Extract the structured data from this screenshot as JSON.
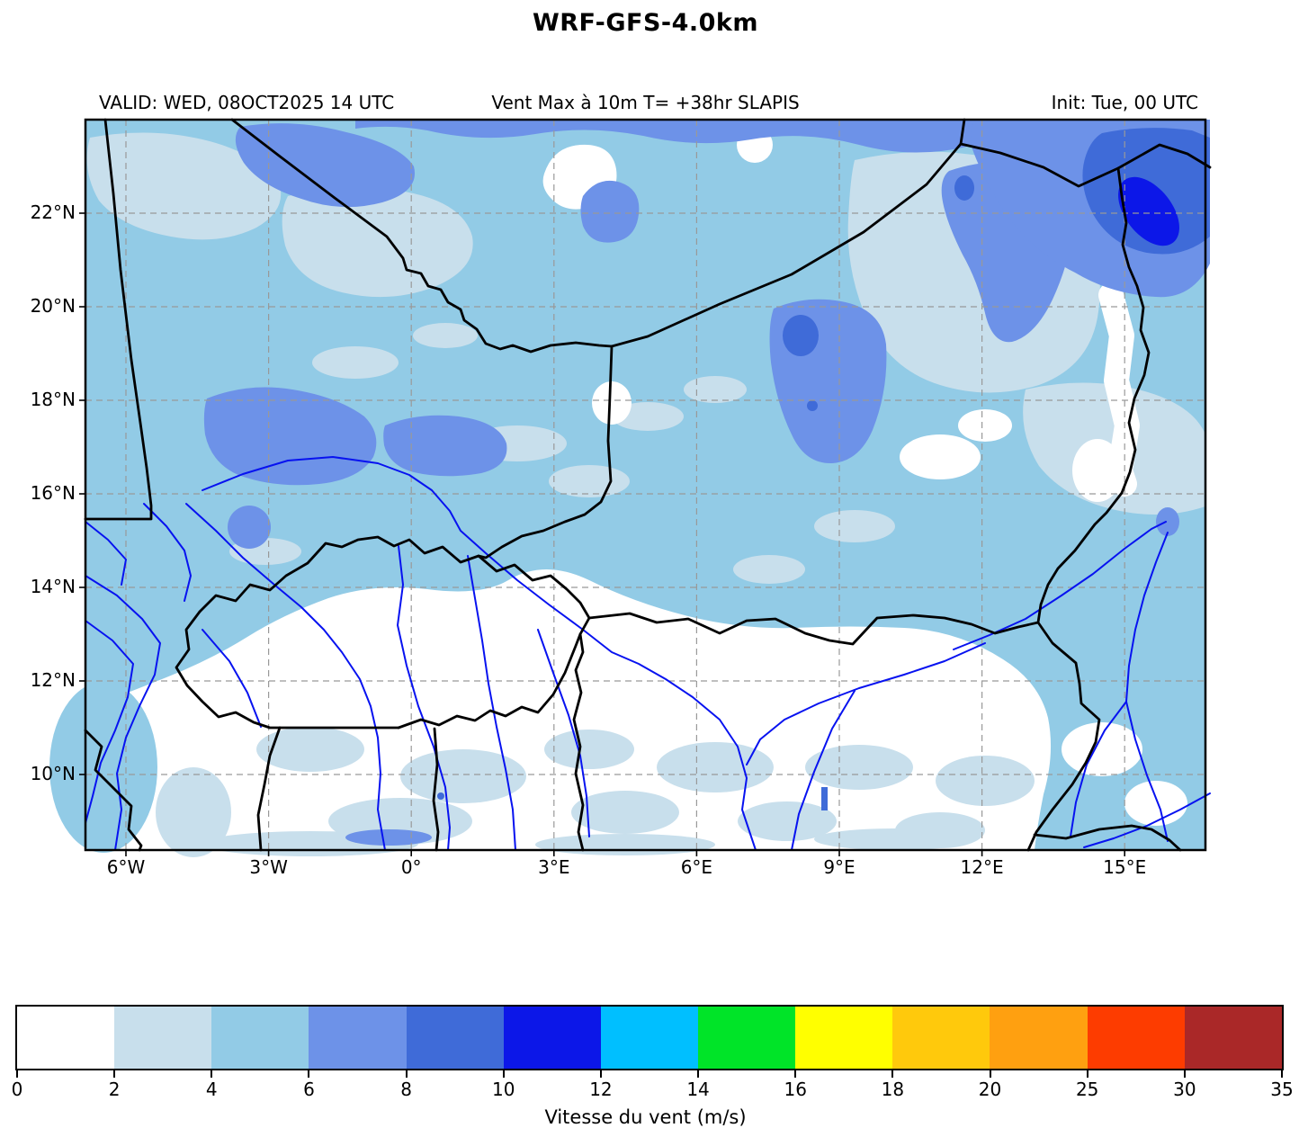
{
  "title": "WRF-GFS-4.0km",
  "header": {
    "valid": "VALID: WED, 08OCT2025 14 UTC",
    "variable": "Vent Max à 10m T= +38hr SLAPIS",
    "init": "Init: Tue, 00 UTC"
  },
  "chart_data": {
    "type": "heatmap",
    "title": "WRF-GFS-4.0km",
    "subtitle_left": "VALID: WED, 08OCT2025 14 UTC",
    "subtitle_center": "Vent Max à 10m T= +38hr SLAPIS",
    "subtitle_right": "Init: Tue, 00 UTC",
    "projection": "lat-lon map of West Africa / Sahel",
    "lon_range_deg": [
      -6.85,
      16.7
    ],
    "lat_range_deg": [
      8.4,
      24.0
    ],
    "grid": "dashed gray graticule every 3 deg lon / 2 deg lat",
    "axes": {
      "lon_ticks": [
        "6°W",
        "3°W",
        "0°",
        "3°E",
        "6°E",
        "9°E",
        "12°E",
        "15°E"
      ],
      "lon_tick_values": [
        -6,
        -3,
        0,
        3,
        6,
        9,
        12,
        15
      ],
      "lat_ticks": [
        "22°N",
        "20°N",
        "18°N",
        "16°N",
        "14°N",
        "12°N",
        "10°N"
      ],
      "lat_tick_values": [
        22,
        20,
        18,
        16,
        14,
        12,
        10
      ]
    },
    "colorbar": {
      "label": "Vitesse du vent (m/s)",
      "orientation": "horizontal",
      "boundaries": [
        0,
        2,
        4,
        6,
        8,
        10,
        12,
        14,
        16,
        18,
        20,
        25,
        30,
        35
      ],
      "tick_labels": [
        "0",
        "2",
        "4",
        "6",
        "8",
        "10",
        "12",
        "14",
        "16",
        "18",
        "20",
        "25",
        "30",
        "35"
      ],
      "colors": [
        "#ffffff",
        "#c8dfec",
        "#92cbe6",
        "#6d92e8",
        "#3f6bd8",
        "#0c17e8",
        "#00bfff",
        "#00e428",
        "#ffff00",
        "#ffc90c",
        "#ffa010",
        "#fd3c00",
        "#aa2828"
      ]
    },
    "value_range_visible_ms": [
      0,
      12
    ],
    "features": [
      {
        "region": "northeast corner near Libya/Chad border (~15°E, 21-23°N)",
        "wind_ms": "8-12",
        "note": "strongest winds on map, small 10-12 m/s core"
      },
      {
        "region": "central-north Niger (~8-10°E, 16-20°N)",
        "wind_ms": "6-10",
        "note": "cornflower-blue tongue with small 8-10 m/s spots"
      },
      {
        "region": "northern Mali / Algeria (~4°W-1°E, 17-18°N and along 23-24°N)",
        "wind_ms": "6-8"
      },
      {
        "region": "Niger river bend area (~0°, 16-17°N)",
        "wind_ms": "6-8"
      },
      {
        "region": "southern band 9-13°N (Burkina Faso, south Niger, north Nigeria)",
        "wind_ms": "0-4",
        "note": "calm, white with pale-blue mottling"
      },
      {
        "region": "remaining area",
        "wind_ms": "4-6",
        "note": "light sky-blue background"
      }
    ],
    "map_overlays": {
      "country_borders": "black solid lines (Mauritania, Mali, Algeria, Niger, Libya, Chad, Burkina Faso, Ghana, Togo, Benin, Nigeria, Cameroon)",
      "rivers": "blue lines (Niger, Volta, Komadugu, Chari/Logone, Benue, Senegal headwaters)",
      "lake": "Lake Chad shown near 14°E, 13.5°N"
    }
  }
}
